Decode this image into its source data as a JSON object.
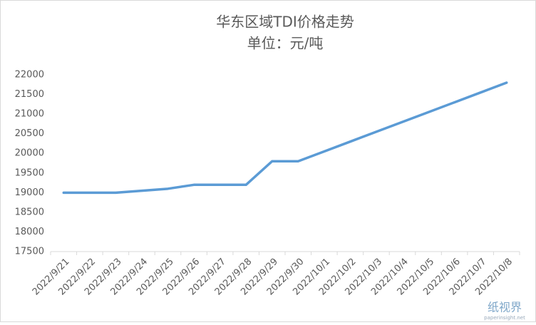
{
  "chart_data": {
    "type": "line",
    "title": "华东区域TDI价格走势",
    "subtitle": "单位：元/吨",
    "categories": [
      "2022/9/21",
      "2022/9/22",
      "2022/9/23",
      "2022/9/24",
      "2022/9/25",
      "2022/9/26",
      "2022/9/27",
      "2022/9/28",
      "2022/9/29",
      "2022/9/30",
      "2022/10/1",
      "2022/10/2",
      "2022/10/3",
      "2022/10/4",
      "2022/10/5",
      "2022/10/6",
      "2022/10/7",
      "2022/10/8"
    ],
    "values": [
      19000,
      19000,
      19000,
      19050,
      19100,
      19200,
      19200,
      19200,
      19800,
      19800,
      20050,
      20300,
      20550,
      20800,
      21050,
      21300,
      21550,
      21800
    ],
    "color": "#5b9bd5",
    "ylim": [
      17500,
      22000
    ],
    "yticks": [
      17500,
      18000,
      18500,
      19000,
      19500,
      20000,
      20500,
      21000,
      21500,
      22000
    ],
    "grid": false
  },
  "watermark": {
    "name": "纸视界",
    "site": "paperinsight.net"
  }
}
